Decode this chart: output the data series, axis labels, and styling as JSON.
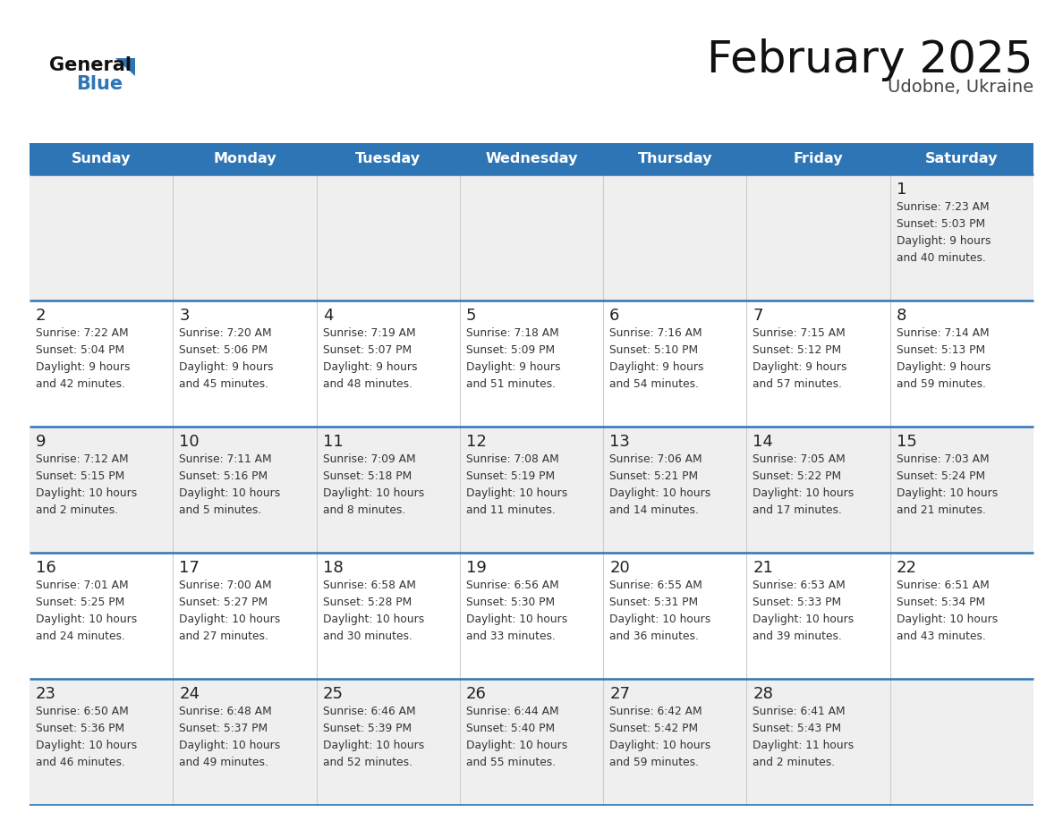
{
  "title": "February 2025",
  "subtitle": "Udobne, Ukraine",
  "header_color": "#2e75b6",
  "header_text_color": "#ffffff",
  "cell_bg_even": "#efefef",
  "cell_bg_odd": "#ffffff",
  "border_color": "#2e75b6",
  "day_number_color": "#222222",
  "text_color": "#333333",
  "days_of_week": [
    "Sunday",
    "Monday",
    "Tuesday",
    "Wednesday",
    "Thursday",
    "Friday",
    "Saturday"
  ],
  "calendar_data": [
    [
      null,
      null,
      null,
      null,
      null,
      null,
      {
        "day": "1",
        "sunrise": "7:23 AM",
        "sunset": "5:03 PM",
        "daylight1": "Daylight: 9 hours",
        "daylight2": "and 40 minutes."
      }
    ],
    [
      {
        "day": "2",
        "sunrise": "7:22 AM",
        "sunset": "5:04 PM",
        "daylight1": "Daylight: 9 hours",
        "daylight2": "and 42 minutes."
      },
      {
        "day": "3",
        "sunrise": "7:20 AM",
        "sunset": "5:06 PM",
        "daylight1": "Daylight: 9 hours",
        "daylight2": "and 45 minutes."
      },
      {
        "day": "4",
        "sunrise": "7:19 AM",
        "sunset": "5:07 PM",
        "daylight1": "Daylight: 9 hours",
        "daylight2": "and 48 minutes."
      },
      {
        "day": "5",
        "sunrise": "7:18 AM",
        "sunset": "5:09 PM",
        "daylight1": "Daylight: 9 hours",
        "daylight2": "and 51 minutes."
      },
      {
        "day": "6",
        "sunrise": "7:16 AM",
        "sunset": "5:10 PM",
        "daylight1": "Daylight: 9 hours",
        "daylight2": "and 54 minutes."
      },
      {
        "day": "7",
        "sunrise": "7:15 AM",
        "sunset": "5:12 PM",
        "daylight1": "Daylight: 9 hours",
        "daylight2": "and 57 minutes."
      },
      {
        "day": "8",
        "sunrise": "7:14 AM",
        "sunset": "5:13 PM",
        "daylight1": "Daylight: 9 hours",
        "daylight2": "and 59 minutes."
      }
    ],
    [
      {
        "day": "9",
        "sunrise": "7:12 AM",
        "sunset": "5:15 PM",
        "daylight1": "Daylight: 10 hours",
        "daylight2": "and 2 minutes."
      },
      {
        "day": "10",
        "sunrise": "7:11 AM",
        "sunset": "5:16 PM",
        "daylight1": "Daylight: 10 hours",
        "daylight2": "and 5 minutes."
      },
      {
        "day": "11",
        "sunrise": "7:09 AM",
        "sunset": "5:18 PM",
        "daylight1": "Daylight: 10 hours",
        "daylight2": "and 8 minutes."
      },
      {
        "day": "12",
        "sunrise": "7:08 AM",
        "sunset": "5:19 PM",
        "daylight1": "Daylight: 10 hours",
        "daylight2": "and 11 minutes."
      },
      {
        "day": "13",
        "sunrise": "7:06 AM",
        "sunset": "5:21 PM",
        "daylight1": "Daylight: 10 hours",
        "daylight2": "and 14 minutes."
      },
      {
        "day": "14",
        "sunrise": "7:05 AM",
        "sunset": "5:22 PM",
        "daylight1": "Daylight: 10 hours",
        "daylight2": "and 17 minutes."
      },
      {
        "day": "15",
        "sunrise": "7:03 AM",
        "sunset": "5:24 PM",
        "daylight1": "Daylight: 10 hours",
        "daylight2": "and 21 minutes."
      }
    ],
    [
      {
        "day": "16",
        "sunrise": "7:01 AM",
        "sunset": "5:25 PM",
        "daylight1": "Daylight: 10 hours",
        "daylight2": "and 24 minutes."
      },
      {
        "day": "17",
        "sunrise": "7:00 AM",
        "sunset": "5:27 PM",
        "daylight1": "Daylight: 10 hours",
        "daylight2": "and 27 minutes."
      },
      {
        "day": "18",
        "sunrise": "6:58 AM",
        "sunset": "5:28 PM",
        "daylight1": "Daylight: 10 hours",
        "daylight2": "and 30 minutes."
      },
      {
        "day": "19",
        "sunrise": "6:56 AM",
        "sunset": "5:30 PM",
        "daylight1": "Daylight: 10 hours",
        "daylight2": "and 33 minutes."
      },
      {
        "day": "20",
        "sunrise": "6:55 AM",
        "sunset": "5:31 PM",
        "daylight1": "Daylight: 10 hours",
        "daylight2": "and 36 minutes."
      },
      {
        "day": "21",
        "sunrise": "6:53 AM",
        "sunset": "5:33 PM",
        "daylight1": "Daylight: 10 hours",
        "daylight2": "and 39 minutes."
      },
      {
        "day": "22",
        "sunrise": "6:51 AM",
        "sunset": "5:34 PM",
        "daylight1": "Daylight: 10 hours",
        "daylight2": "and 43 minutes."
      }
    ],
    [
      {
        "day": "23",
        "sunrise": "6:50 AM",
        "sunset": "5:36 PM",
        "daylight1": "Daylight: 10 hours",
        "daylight2": "and 46 minutes."
      },
      {
        "day": "24",
        "sunrise": "6:48 AM",
        "sunset": "5:37 PM",
        "daylight1": "Daylight: 10 hours",
        "daylight2": "and 49 minutes."
      },
      {
        "day": "25",
        "sunrise": "6:46 AM",
        "sunset": "5:39 PM",
        "daylight1": "Daylight: 10 hours",
        "daylight2": "and 52 minutes."
      },
      {
        "day": "26",
        "sunrise": "6:44 AM",
        "sunset": "5:40 PM",
        "daylight1": "Daylight: 10 hours",
        "daylight2": "and 55 minutes."
      },
      {
        "day": "27",
        "sunrise": "6:42 AM",
        "sunset": "5:42 PM",
        "daylight1": "Daylight: 10 hours",
        "daylight2": "and 59 minutes."
      },
      {
        "day": "28",
        "sunrise": "6:41 AM",
        "sunset": "5:43 PM",
        "daylight1": "Daylight: 11 hours",
        "daylight2": "and 2 minutes."
      },
      null
    ]
  ]
}
